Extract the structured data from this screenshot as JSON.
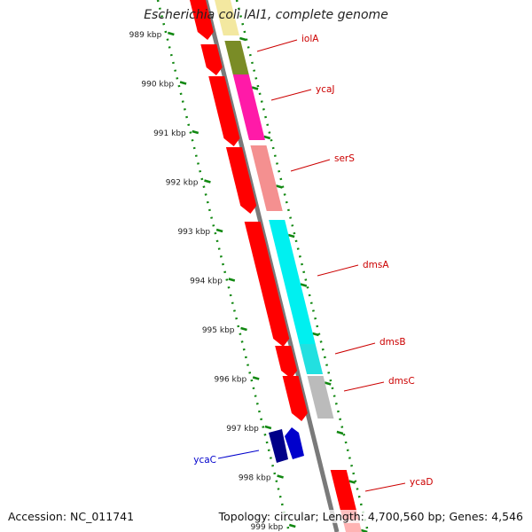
{
  "title": "Escherichia coli IAI1, complete genome",
  "footer": {
    "accession": "Accession: NC_011741",
    "topology": "Topology: circular; Length: 4,700,560 bp; Genes: 4,546"
  },
  "ruler": {
    "ticks": [
      "989 kbp",
      "990 kbp",
      "991 kbp",
      "992 kbp",
      "993 kbp",
      "994 kbp",
      "995 kbp",
      "996 kbp",
      "997 kbp",
      "998 kbp",
      "999 kbp"
    ]
  },
  "colors": {
    "forward_cds": "#ff0000",
    "reverse_cds": "#0000cc",
    "gene_label_forward": "#cc0000",
    "gene_label_reverse": "#0000cc",
    "ruler": "#118811",
    "backbone": "#777777",
    "iolA": "#f3e8a0",
    "ycaJ_lower": "#7a8c26",
    "ycaJ": "#ff1aa8",
    "serS": "#f49090",
    "dmsA": "#00f0f0",
    "dmsB": "#22e0e0",
    "dmsC": "#bbbbbb",
    "ycaC": "#000088",
    "ycaD": "#ff0000"
  },
  "genes": [
    {
      "name": "iolA",
      "strand": "forward"
    },
    {
      "name": "ycaJ",
      "strand": "forward"
    },
    {
      "name": "serS",
      "strand": "forward"
    },
    {
      "name": "dmsA",
      "strand": "forward"
    },
    {
      "name": "dmsB",
      "strand": "forward"
    },
    {
      "name": "dmsC",
      "strand": "forward"
    },
    {
      "name": "ycaC",
      "strand": "reverse"
    },
    {
      "name": "ycaD",
      "strand": "forward"
    }
  ]
}
